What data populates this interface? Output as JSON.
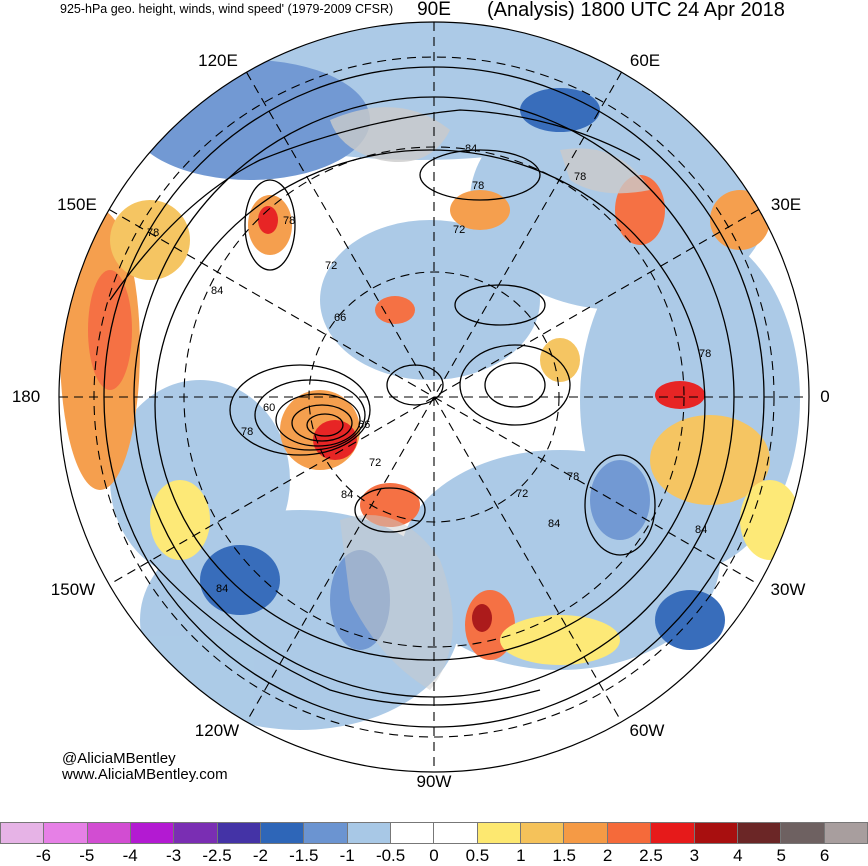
{
  "title": {
    "left": "925-hPa geo. height, winds, wind speed' (1979-2009 CFSR)",
    "right": "(Analysis) 1800 UTC 24 Apr 2018"
  },
  "longitude_labels": {
    "e90": "90E",
    "e60": "60E",
    "e30": "30E",
    "zero": "0",
    "w30": "30W",
    "w60": "60W",
    "w90": "90W",
    "w120": "120W",
    "w150": "150W",
    "dateline": "180",
    "e150": "150E",
    "e120": "120E"
  },
  "contour_labels": [
    "84",
    "78",
    "72",
    "78",
    "78",
    "78",
    "84",
    "72",
    "66",
    "60",
    "78",
    "66",
    "72",
    "84",
    "72",
    "78",
    "84",
    "84",
    "78",
    "84"
  ],
  "credit": {
    "handle": "@AliciaMBentley",
    "website": "www.AliciaMBentley.com"
  },
  "colorbar": {
    "colors": [
      "#e6b3e6",
      "#e680e6",
      "#d24dd2",
      "#b31ad2",
      "#7a2eb3",
      "#4433a6",
      "#2e66b8",
      "#6b94d1",
      "#a8c8e6",
      "#ffffff",
      "#ffffff",
      "#fde870",
      "#f5c25a",
      "#f59a45",
      "#f56a3a",
      "#e61a1a",
      "#a80f0f",
      "#6b2626",
      "#6e6161",
      "#a89e9e"
    ],
    "ticks": [
      "-6",
      "-5",
      "-4",
      "-3",
      "-2.5",
      "-2",
      "-1.5",
      "-1",
      "-0.5",
      "0",
      "0.5",
      "1",
      "1.5",
      "2",
      "2.5",
      "3",
      "4",
      "5",
      "6"
    ]
  }
}
